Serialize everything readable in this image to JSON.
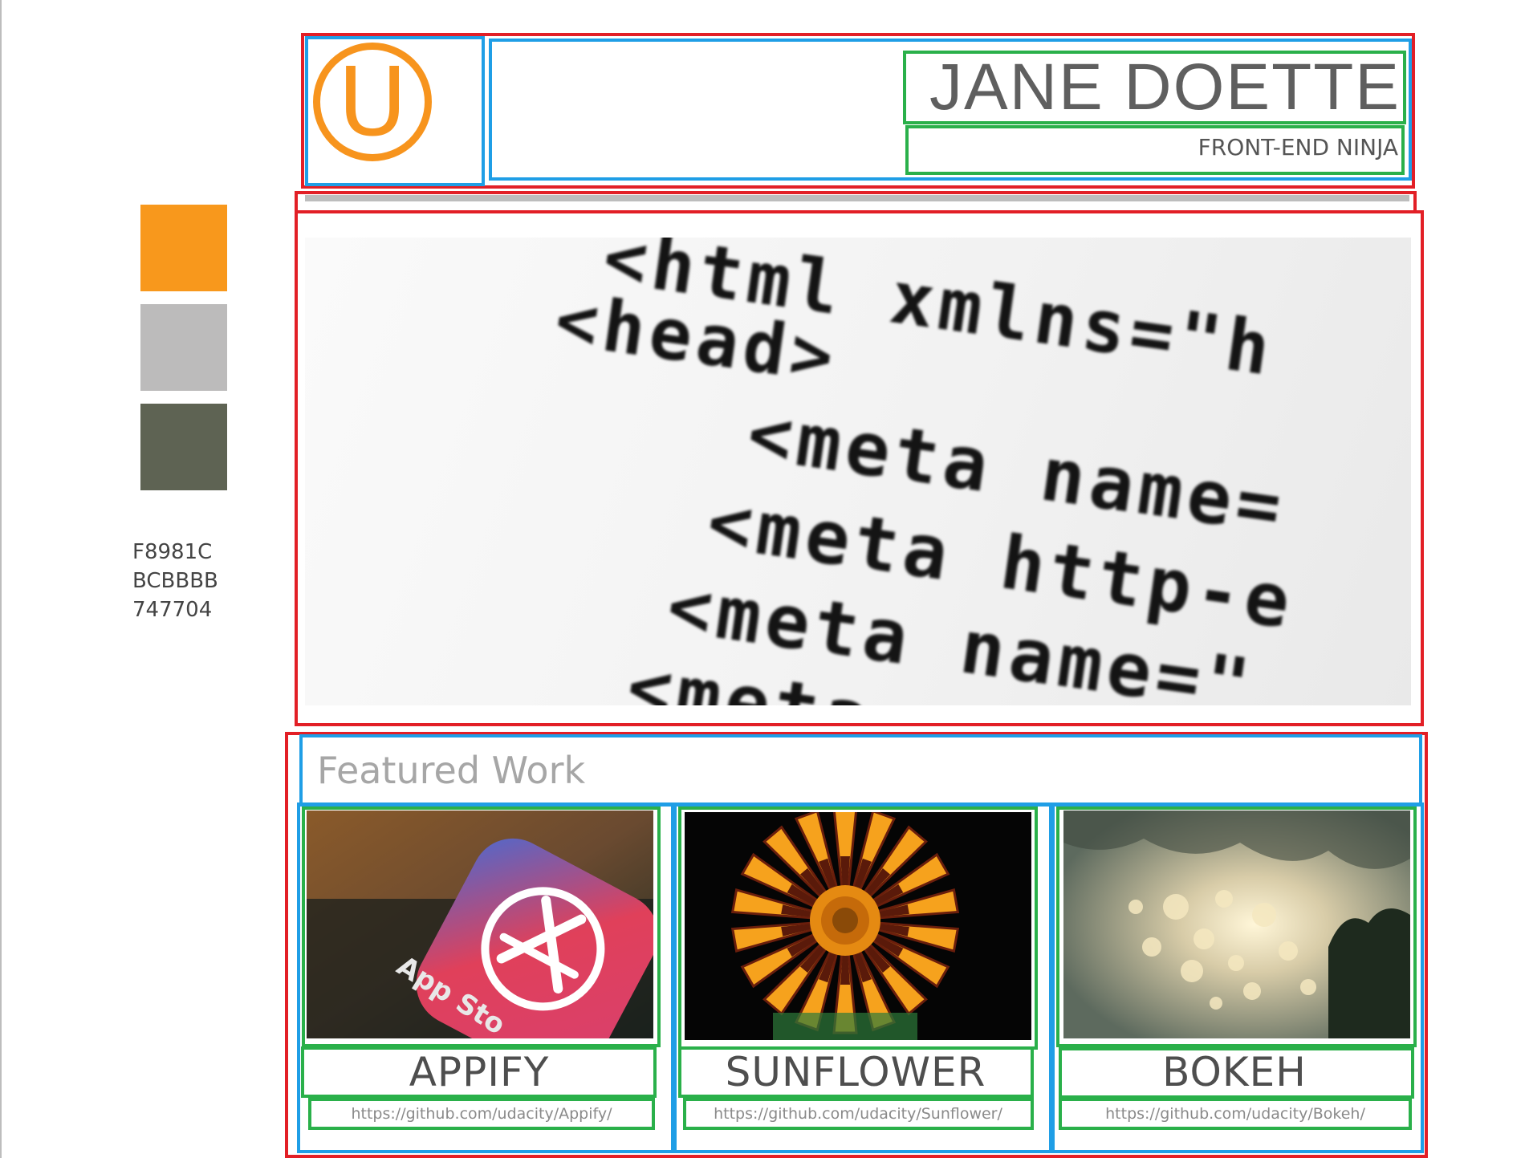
{
  "palette": {
    "swatches": [
      {
        "color": "#F8981C",
        "hex": "F8981C"
      },
      {
        "color": "#BCBBBB",
        "hex": "BCBBBB"
      },
      {
        "color": "#747704",
        "hex": "747704"
      }
    ]
  },
  "header": {
    "logo_letter": "U",
    "name": "JANE DOETTE",
    "subtitle": "FRONT-END NINJA"
  },
  "hero": {
    "code_lines": [
      "<html xmlns=\"h",
      "<head>",
      "<meta name=",
      "<meta http-e",
      "<meta name=\"",
      "<meta n"
    ]
  },
  "featured": {
    "title": "Featured Work",
    "projects": [
      {
        "title": "APPIFY",
        "link": "https://github.com/udacity/Appify/",
        "icon": "app-store-icon"
      },
      {
        "title": "SUNFLOWER",
        "link": "https://github.com/udacity/Sunflower/",
        "icon": "sunflower-image"
      },
      {
        "title": "BOKEH",
        "link": "https://github.com/udacity/Bokeh/",
        "icon": "bokeh-image"
      }
    ]
  },
  "colors": {
    "accent": "#F7941D",
    "divider": "#BDBDBD",
    "annotation_red": "#E21F26",
    "annotation_blue": "#1F9EE6",
    "annotation_green": "#2AB04A"
  }
}
